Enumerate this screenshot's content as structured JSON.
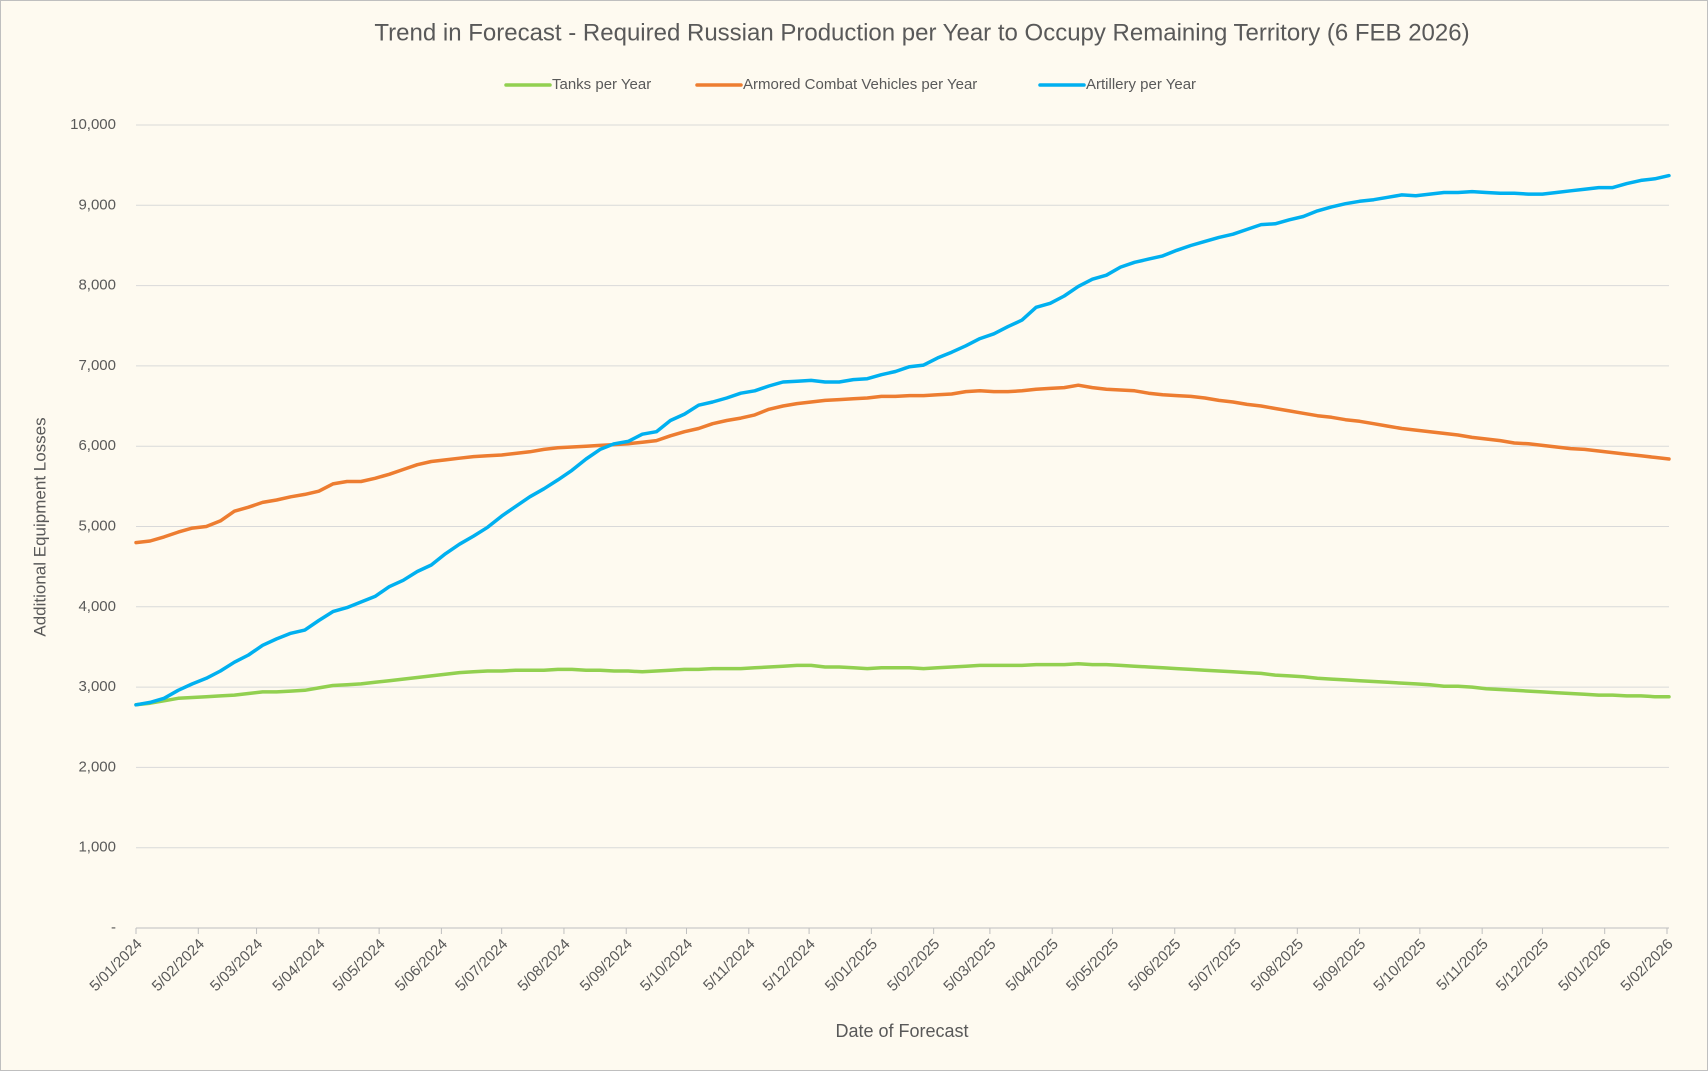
{
  "chart_data": {
    "type": "line",
    "title": "Trend in Forecast - Required Russian Production per Year to Occupy Remaining Territory (6 FEB 2026)",
    "x_label": "Date of Forecast",
    "y_label": "Additional Equipment Losses",
    "legend": "top",
    "grid": true,
    "x": [
      "2024-01-05",
      "2024-01-12",
      "2024-01-19",
      "2024-01-26",
      "2024-02-02",
      "2024-02-09",
      "2024-02-16",
      "2024-02-23",
      "2024-03-01",
      "2024-03-08",
      "2024-03-15",
      "2024-03-22",
      "2024-03-29",
      "2024-04-05",
      "2024-04-12",
      "2024-04-19",
      "2024-04-26",
      "2024-05-03",
      "2024-05-10",
      "2024-05-17",
      "2024-05-24",
      "2024-05-31",
      "2024-06-07",
      "2024-06-14",
      "2024-06-21",
      "2024-06-28",
      "2024-07-05",
      "2024-07-12",
      "2024-07-19",
      "2024-07-26",
      "2024-08-02",
      "2024-08-09",
      "2024-08-16",
      "2024-08-23",
      "2024-08-30",
      "2024-09-06",
      "2024-09-13",
      "2024-09-20",
      "2024-09-27",
      "2024-10-04",
      "2024-10-11",
      "2024-10-18",
      "2024-10-25",
      "2024-11-01",
      "2024-11-08",
      "2024-11-15",
      "2024-11-22",
      "2024-11-29",
      "2024-12-06",
      "2024-12-13",
      "2024-12-20",
      "2024-12-27",
      "2025-01-03",
      "2025-01-10",
      "2025-01-17",
      "2025-01-24",
      "2025-01-31",
      "2025-02-07",
      "2025-02-14",
      "2025-02-21",
      "2025-02-28",
      "2025-03-07",
      "2025-03-14",
      "2025-03-21",
      "2025-03-28",
      "2025-04-04",
      "2025-04-11",
      "2025-04-18",
      "2025-04-25",
      "2025-05-02",
      "2025-05-09",
      "2025-05-16",
      "2025-05-23",
      "2025-05-30",
      "2025-06-06",
      "2025-06-13",
      "2025-06-20",
      "2025-06-27",
      "2025-07-04",
      "2025-07-11",
      "2025-07-18",
      "2025-07-25",
      "2025-08-01",
      "2025-08-08",
      "2025-08-15",
      "2025-08-22",
      "2025-08-29",
      "2025-09-05",
      "2025-09-12",
      "2025-09-19",
      "2025-09-26",
      "2025-10-03",
      "2025-10-10",
      "2025-10-17",
      "2025-10-24",
      "2025-10-31",
      "2025-11-07",
      "2025-11-14",
      "2025-11-21",
      "2025-11-28",
      "2025-12-05",
      "2025-12-12",
      "2025-12-19",
      "2025-12-26",
      "2026-01-02",
      "2026-01-09",
      "2026-01-16",
      "2026-01-23",
      "2026-01-30",
      "2026-02-06"
    ],
    "xlim": [
      "2024-01-05",
      "2026-02-06"
    ],
    "xticks": [
      {
        "value": "2024-01-05",
        "label": "5/01/2024"
      },
      {
        "value": "2024-02-05",
        "label": "5/02/2024"
      },
      {
        "value": "2024-03-05",
        "label": "5/03/2024"
      },
      {
        "value": "2024-04-05",
        "label": "5/04/2024"
      },
      {
        "value": "2024-05-05",
        "label": "5/05/2024"
      },
      {
        "value": "2024-06-05",
        "label": "5/06/2024"
      },
      {
        "value": "2024-07-05",
        "label": "5/07/2024"
      },
      {
        "value": "2024-08-05",
        "label": "5/08/2024"
      },
      {
        "value": "2024-09-05",
        "label": "5/09/2024"
      },
      {
        "value": "2024-10-05",
        "label": "5/10/2024"
      },
      {
        "value": "2024-11-05",
        "label": "5/11/2024"
      },
      {
        "value": "2024-12-05",
        "label": "5/12/2024"
      },
      {
        "value": "2025-01-05",
        "label": "5/01/2025"
      },
      {
        "value": "2025-02-05",
        "label": "5/02/2025"
      },
      {
        "value": "2025-03-05",
        "label": "5/03/2025"
      },
      {
        "value": "2025-04-05",
        "label": "5/04/2025"
      },
      {
        "value": "2025-05-05",
        "label": "5/05/2025"
      },
      {
        "value": "2025-06-05",
        "label": "5/06/2025"
      },
      {
        "value": "2025-07-05",
        "label": "5/07/2025"
      },
      {
        "value": "2025-08-05",
        "label": "5/08/2025"
      },
      {
        "value": "2025-09-05",
        "label": "5/09/2025"
      },
      {
        "value": "2025-10-05",
        "label": "5/10/2025"
      },
      {
        "value": "2025-11-05",
        "label": "5/11/2025"
      },
      {
        "value": "2025-12-05",
        "label": "5/12/2025"
      },
      {
        "value": "2026-01-05",
        "label": "5/01/2026"
      },
      {
        "value": "2026-02-05",
        "label": "5/02/2026"
      }
    ],
    "ylim": [
      0,
      10000
    ],
    "yticks": [
      {
        "value": 0,
        "label": "-"
      },
      {
        "value": 1000,
        "label": "1,000"
      },
      {
        "value": 2000,
        "label": "2,000"
      },
      {
        "value": 3000,
        "label": "3,000"
      },
      {
        "value": 4000,
        "label": "4,000"
      },
      {
        "value": 5000,
        "label": "5,000"
      },
      {
        "value": 6000,
        "label": "6,000"
      },
      {
        "value": 7000,
        "label": "7,000"
      },
      {
        "value": 8000,
        "label": "8,000"
      },
      {
        "value": 9000,
        "label": "9,000"
      },
      {
        "value": 10000,
        "label": "10,000"
      }
    ],
    "series": [
      {
        "name": "Tanks per Year",
        "color": "#92d050",
        "values": [
          2780,
          2800,
          2830,
          2860,
          2870,
          2880,
          2890,
          2900,
          2920,
          2940,
          2940,
          2950,
          2960,
          2990,
          3020,
          3030,
          3040,
          3060,
          3080,
          3100,
          3120,
          3140,
          3160,
          3180,
          3190,
          3200,
          3200,
          3210,
          3210,
          3210,
          3220,
          3220,
          3210,
          3210,
          3200,
          3200,
          3190,
          3200,
          3210,
          3220,
          3220,
          3230,
          3230,
          3230,
          3240,
          3250,
          3260,
          3270,
          3270,
          3250,
          3250,
          3240,
          3230,
          3240,
          3240,
          3240,
          3230,
          3240,
          3250,
          3260,
          3270,
          3270,
          3270,
          3270,
          3280,
          3280,
          3280,
          3290,
          3280,
          3280,
          3270,
          3260,
          3250,
          3240,
          3230,
          3220,
          3210,
          3200,
          3190,
          3180,
          3170,
          3150,
          3140,
          3130,
          3110,
          3100,
          3090,
          3080,
          3070,
          3060,
          3050,
          3040,
          3030,
          3010,
          3010,
          3000,
          2980,
          2970,
          2960,
          2950,
          2940,
          2930,
          2920,
          2910,
          2900,
          2900,
          2890,
          2890,
          2880,
          2880
        ]
      },
      {
        "name": "Armored Combat Vehicles per Year",
        "color": "#ed7d31",
        "values": [
          4800,
          4820,
          4870,
          4930,
          4980,
          5000,
          5070,
          5190,
          5240,
          5300,
          5330,
          5370,
          5400,
          5440,
          5530,
          5560,
          5560,
          5600,
          5650,
          5710,
          5770,
          5810,
          5830,
          5850,
          5870,
          5880,
          5890,
          5910,
          5930,
          5960,
          5980,
          5990,
          6000,
          6010,
          6020,
          6030,
          6050,
          6070,
          6130,
          6180,
          6220,
          6280,
          6320,
          6350,
          6390,
          6460,
          6500,
          6530,
          6550,
          6570,
          6580,
          6590,
          6600,
          6620,
          6620,
          6630,
          6630,
          6640,
          6650,
          6680,
          6690,
          6680,
          6680,
          6690,
          6710,
          6720,
          6730,
          6760,
          6730,
          6710,
          6700,
          6690,
          6660,
          6640,
          6630,
          6620,
          6600,
          6570,
          6550,
          6520,
          6500,
          6470,
          6440,
          6410,
          6380,
          6360,
          6330,
          6310,
          6280,
          6250,
          6220,
          6200,
          6180,
          6160,
          6140,
          6110,
          6090,
          6070,
          6040,
          6030,
          6010,
          5990,
          5970,
          5960,
          5940,
          5920,
          5900,
          5880,
          5860,
          5840
        ]
      },
      {
        "name": "Artillery per Year",
        "color": "#00b0f0",
        "values": [
          2780,
          2810,
          2860,
          2960,
          3040,
          3110,
          3200,
          3310,
          3400,
          3520,
          3600,
          3670,
          3710,
          3830,
          3940,
          3990,
          4060,
          4130,
          4250,
          4330,
          4440,
          4520,
          4660,
          4780,
          4880,
          4990,
          5130,
          5250,
          5370,
          5470,
          5580,
          5700,
          5840,
          5960,
          6030,
          6060,
          6150,
          6180,
          6320,
          6400,
          6510,
          6550,
          6600,
          6660,
          6690,
          6750,
          6800,
          6810,
          6820,
          6800,
          6800,
          6830,
          6840,
          6890,
          6930,
          6990,
          7010,
          7100,
          7170,
          7250,
          7340,
          7400,
          7490,
          7570,
          7730,
          7780,
          7870,
          7990,
          8080,
          8130,
          8230,
          8290,
          8330,
          8370,
          8440,
          8500,
          8550,
          8600,
          8640,
          8700,
          8760,
          8770,
          8820,
          8860,
          8930,
          8980,
          9020,
          9050,
          9070,
          9100,
          9130,
          9120,
          9140,
          9160,
          9160,
          9170,
          9160,
          9150,
          9150,
          9140,
          9140,
          9160,
          9180,
          9200,
          9220,
          9220,
          9270,
          9310,
          9330,
          9370
        ]
      }
    ]
  }
}
